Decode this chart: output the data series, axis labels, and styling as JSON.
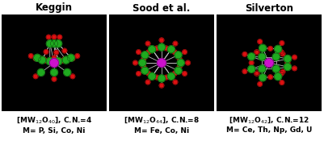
{
  "title1": "Keggin",
  "title2": "Sood et al.",
  "title3": "Silverton",
  "label1_line1": "[MW$_{12}$O$_{40}$], C.N.=4",
  "label1_line2": "M= P, Si, Co, Ni",
  "label2_line1": "[MW$_{12}$O$_{44}$], C.N.=8",
  "label2_line2": "M= Fe, Co, Ni",
  "label3_line1": "[MW$_{12}$O$_{42}$], C.N.=12",
  "label3_line2": "M= Ce, Th, Np, Gd, U",
  "figure_bg": "#ffffff",
  "panel_bg": "#000000",
  "title_fontsize": 8.5,
  "label_fontsize": 6.5,
  "green": "#1faa1f",
  "red": "#dd1111",
  "magenta": "#cc11cc",
  "bond_color": "#bbbbbb",
  "bond_lw": 0.6,
  "r_green": 4.5,
  "r_red": 2.8,
  "r_magenta": 5.5
}
